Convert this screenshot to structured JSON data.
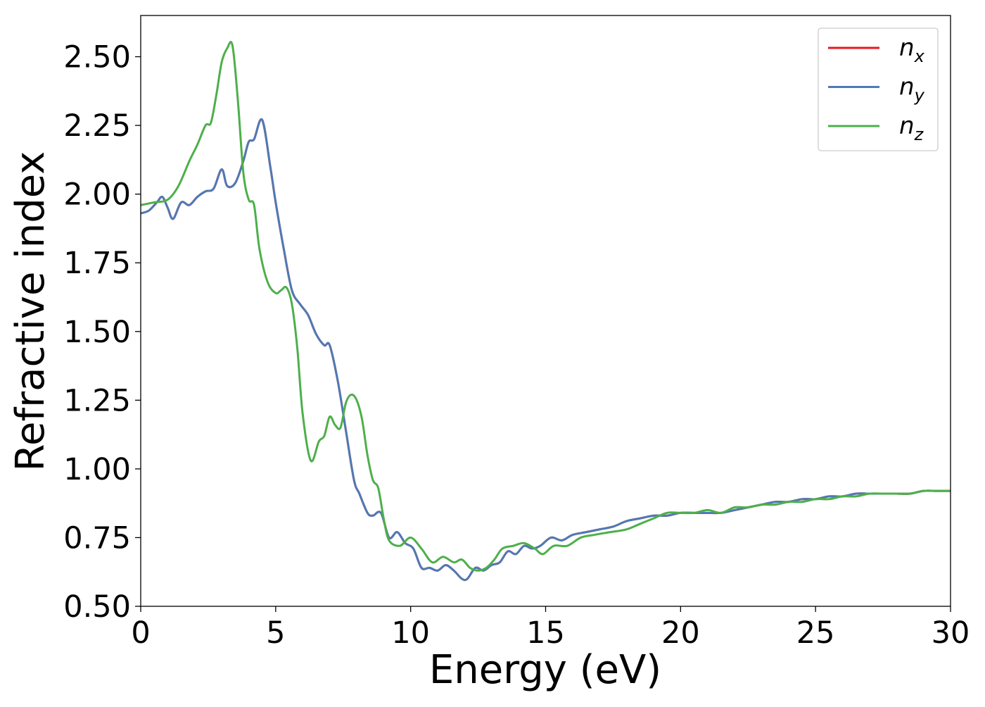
{
  "chart_data": {
    "type": "line",
    "xlabel": "Energy (eV)",
    "ylabel": "Refractive index",
    "xlim": [
      0,
      30
    ],
    "ylim": [
      0.5,
      2.65
    ],
    "x_ticks": [
      0,
      5,
      10,
      15,
      20,
      25,
      30
    ],
    "x_tick_labels": [
      "0",
      "5",
      "10",
      "15",
      "20",
      "25",
      "30"
    ],
    "y_ticks": [
      0.5,
      0.75,
      1.0,
      1.25,
      1.5,
      1.75,
      2.0,
      2.25,
      2.5
    ],
    "y_tick_labels": [
      "0.50",
      "0.75",
      "1.00",
      "1.25",
      "1.50",
      "1.75",
      "2.00",
      "2.25",
      "2.50"
    ],
    "grid": false,
    "legend_position": "top-right",
    "series": [
      {
        "name": "n_x",
        "legend_base": "n",
        "legend_sub": "x",
        "color": "#e41a1c",
        "x": [
          0,
          0.3,
          0.6,
          0.8,
          1.0,
          1.2,
          1.5,
          1.8,
          2.1,
          2.4,
          2.7,
          3.0,
          3.2,
          3.5,
          3.8,
          4.0,
          4.2,
          4.5,
          4.8,
          5.0,
          5.3,
          5.6,
          5.9,
          6.2,
          6.5,
          6.8,
          7.0,
          7.3,
          7.6,
          7.9,
          8.1,
          8.4,
          8.6,
          8.9,
          9.2,
          9.5,
          9.8,
          10.1,
          10.4,
          10.7,
          11.0,
          11.3,
          11.6,
          11.9,
          12.1,
          12.4,
          12.7,
          13.0,
          13.3,
          13.6,
          13.9,
          14.2,
          14.5,
          14.8,
          15.2,
          15.6,
          16.0,
          16.5,
          17.0,
          17.5,
          18.0,
          18.5,
          19.0,
          19.5,
          20.0,
          20.5,
          21.0,
          21.5,
          22.0,
          22.5,
          23.0,
          23.5,
          24.0,
          24.5,
          25.0,
          25.5,
          26.0,
          26.5,
          27.0,
          27.5,
          28.0,
          28.5,
          29.0,
          29.5,
          30.0
        ],
        "values": [
          1.93,
          1.94,
          1.97,
          1.99,
          1.95,
          1.91,
          1.97,
          1.96,
          1.99,
          2.01,
          2.02,
          2.09,
          2.03,
          2.04,
          2.12,
          2.19,
          2.2,
          2.27,
          2.1,
          1.97,
          1.8,
          1.65,
          1.6,
          1.56,
          1.49,
          1.45,
          1.45,
          1.32,
          1.14,
          0.96,
          0.91,
          0.84,
          0.83,
          0.84,
          0.75,
          0.77,
          0.73,
          0.71,
          0.64,
          0.64,
          0.63,
          0.65,
          0.63,
          0.6,
          0.6,
          0.64,
          0.63,
          0.65,
          0.66,
          0.7,
          0.69,
          0.72,
          0.71,
          0.72,
          0.75,
          0.74,
          0.76,
          0.77,
          0.78,
          0.79,
          0.81,
          0.82,
          0.83,
          0.83,
          0.84,
          0.84,
          0.84,
          0.84,
          0.85,
          0.86,
          0.87,
          0.88,
          0.88,
          0.89,
          0.89,
          0.9,
          0.9,
          0.91,
          0.91,
          0.91,
          0.91,
          0.91,
          0.92,
          0.92,
          0.92
        ]
      },
      {
        "name": "n_y",
        "legend_base": "n",
        "legend_sub": "y",
        "color": "#4e7ab5",
        "x": [
          0,
          0.3,
          0.6,
          0.8,
          1.0,
          1.2,
          1.5,
          1.8,
          2.1,
          2.4,
          2.7,
          3.0,
          3.2,
          3.5,
          3.8,
          4.0,
          4.2,
          4.5,
          4.8,
          5.0,
          5.3,
          5.6,
          5.9,
          6.2,
          6.5,
          6.8,
          7.0,
          7.3,
          7.6,
          7.9,
          8.1,
          8.4,
          8.6,
          8.9,
          9.2,
          9.5,
          9.8,
          10.1,
          10.4,
          10.7,
          11.0,
          11.3,
          11.6,
          11.9,
          12.1,
          12.4,
          12.7,
          13.0,
          13.3,
          13.6,
          13.9,
          14.2,
          14.5,
          14.8,
          15.2,
          15.6,
          16.0,
          16.5,
          17.0,
          17.5,
          18.0,
          18.5,
          19.0,
          19.5,
          20.0,
          20.5,
          21.0,
          21.5,
          22.0,
          22.5,
          23.0,
          23.5,
          24.0,
          24.5,
          25.0,
          25.5,
          26.0,
          26.5,
          27.0,
          27.5,
          28.0,
          28.5,
          29.0,
          29.5,
          30.0
        ],
        "values": [
          1.93,
          1.94,
          1.97,
          1.99,
          1.95,
          1.91,
          1.97,
          1.96,
          1.99,
          2.01,
          2.02,
          2.09,
          2.03,
          2.04,
          2.12,
          2.19,
          2.2,
          2.27,
          2.1,
          1.97,
          1.8,
          1.65,
          1.6,
          1.56,
          1.49,
          1.45,
          1.45,
          1.32,
          1.14,
          0.96,
          0.91,
          0.84,
          0.83,
          0.84,
          0.75,
          0.77,
          0.73,
          0.71,
          0.64,
          0.64,
          0.63,
          0.65,
          0.63,
          0.6,
          0.6,
          0.64,
          0.63,
          0.65,
          0.66,
          0.7,
          0.69,
          0.72,
          0.71,
          0.72,
          0.75,
          0.74,
          0.76,
          0.77,
          0.78,
          0.79,
          0.81,
          0.82,
          0.83,
          0.83,
          0.84,
          0.84,
          0.84,
          0.84,
          0.85,
          0.86,
          0.87,
          0.88,
          0.88,
          0.89,
          0.89,
          0.9,
          0.9,
          0.91,
          0.91,
          0.91,
          0.91,
          0.91,
          0.92,
          0.92,
          0.92
        ]
      },
      {
        "name": "n_z",
        "legend_base": "n",
        "legend_sub": "z",
        "color": "#4daf4a",
        "x": [
          0,
          0.5,
          1.0,
          1.4,
          1.8,
          2.1,
          2.4,
          2.6,
          2.8,
          3.0,
          3.2,
          3.4,
          3.6,
          3.8,
          4.0,
          4.2,
          4.4,
          4.7,
          5.0,
          5.2,
          5.4,
          5.6,
          5.8,
          6.0,
          6.3,
          6.6,
          6.8,
          7.0,
          7.2,
          7.4,
          7.6,
          7.8,
          8.0,
          8.2,
          8.4,
          8.6,
          8.8,
          9.0,
          9.2,
          9.6,
          10.0,
          10.4,
          10.8,
          11.2,
          11.6,
          11.9,
          12.2,
          12.5,
          12.8,
          13.1,
          13.4,
          13.8,
          14.2,
          14.6,
          14.9,
          15.3,
          15.8,
          16.3,
          16.8,
          17.4,
          18.0,
          18.5,
          19.0,
          19.5,
          20.0,
          20.5,
          21.0,
          21.5,
          22.0,
          22.5,
          23.0,
          23.5,
          24.0,
          24.5,
          25.0,
          25.5,
          26.0,
          26.5,
          27.0,
          27.5,
          28.0,
          28.5,
          29.0,
          29.5,
          30.0
        ],
        "values": [
          1.96,
          1.97,
          1.98,
          2.03,
          2.12,
          2.18,
          2.25,
          2.26,
          2.36,
          2.48,
          2.53,
          2.54,
          2.34,
          2.08,
          1.98,
          1.96,
          1.8,
          1.68,
          1.64,
          1.65,
          1.66,
          1.6,
          1.44,
          1.2,
          1.03,
          1.1,
          1.12,
          1.19,
          1.16,
          1.15,
          1.24,
          1.27,
          1.25,
          1.18,
          1.05,
          0.96,
          0.93,
          0.82,
          0.74,
          0.72,
          0.75,
          0.71,
          0.66,
          0.68,
          0.66,
          0.67,
          0.64,
          0.63,
          0.64,
          0.67,
          0.71,
          0.72,
          0.73,
          0.71,
          0.69,
          0.72,
          0.72,
          0.75,
          0.76,
          0.77,
          0.78,
          0.8,
          0.82,
          0.84,
          0.84,
          0.84,
          0.85,
          0.84,
          0.86,
          0.86,
          0.87,
          0.87,
          0.88,
          0.88,
          0.89,
          0.89,
          0.9,
          0.9,
          0.91,
          0.91,
          0.91,
          0.91,
          0.92,
          0.92,
          0.92
        ]
      }
    ]
  }
}
